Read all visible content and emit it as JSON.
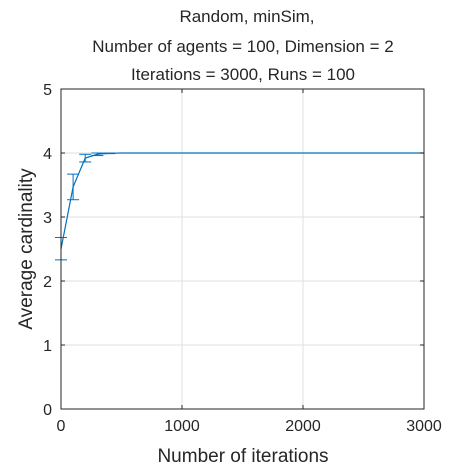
{
  "chart_data": {
    "type": "line",
    "title_lines": [
      "Random, minSim,",
      "Number of agents = 100, Dimension = 2",
      "Iterations = 3000, Runs = 100"
    ],
    "xlabel": "Number of iterations",
    "ylabel": "Average cardinality",
    "xlim": [
      0,
      3000
    ],
    "ylim": [
      0,
      5
    ],
    "xticks": [
      0,
      1000,
      2000,
      3000
    ],
    "xtick_labels": [
      "0",
      "1000",
      "2000",
      "3000"
    ],
    "yticks": [
      0,
      1,
      2,
      3,
      4,
      5
    ],
    "ytick_labels": [
      "0",
      "1",
      "2",
      "3",
      "4",
      "5"
    ],
    "grid": true,
    "line_color": "#0072BD",
    "series": [
      {
        "x": [
          0,
          100,
          200,
          300,
          400,
          500,
          600,
          800,
          1000,
          1500,
          2000,
          2500,
          3000
        ],
        "y": [
          2.5,
          3.47,
          3.92,
          3.98,
          3.995,
          4.0,
          4.0,
          4.0,
          4.0,
          4.0,
          4.0,
          4.0,
          4.0
        ]
      }
    ],
    "error_bars": [
      {
        "x": 0,
        "low": 2.33,
        "high": 2.68
      },
      {
        "x": 100,
        "low": 3.27,
        "high": 3.67
      },
      {
        "x": 200,
        "low": 3.86,
        "high": 3.98
      },
      {
        "x": 300,
        "low": 3.96,
        "high": 4.0
      },
      {
        "x": 400,
        "low": 3.99,
        "high": 4.0
      }
    ]
  }
}
